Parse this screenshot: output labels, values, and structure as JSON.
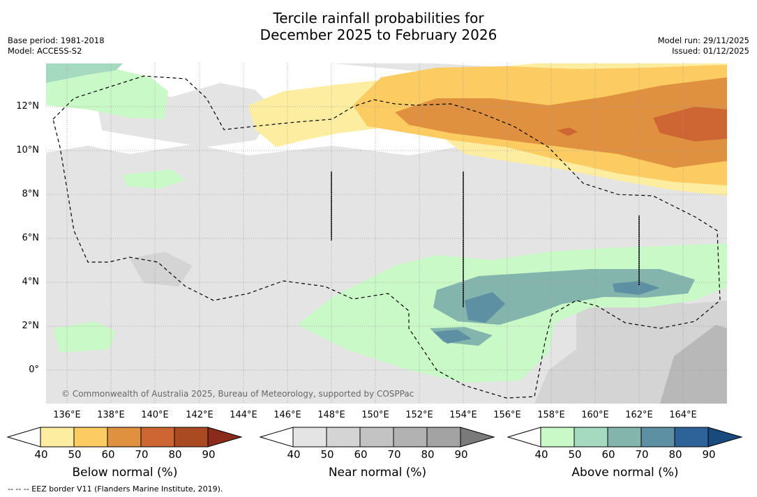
{
  "title": {
    "line1": "Tercile rainfall probabilities for",
    "line2": "December 2025 to February 2026"
  },
  "meta_left": {
    "base_period": "Base period: 1981-2018",
    "model": "Model: ACCESS-S2"
  },
  "meta_right": {
    "model_run": "Model run: 29/11/2025",
    "issued": "Issued: 01/12/2025"
  },
  "x_ticks": [
    "136°E",
    "138°E",
    "140°E",
    "142°E",
    "144°E",
    "146°E",
    "148°E",
    "150°E",
    "152°E",
    "154°E",
    "156°E",
    "158°E",
    "160°E",
    "162°E",
    "164°E"
  ],
  "y_ticks": [
    "12°N",
    "10°N",
    "8°N",
    "6°N",
    "4°N",
    "2°N",
    "0°"
  ],
  "copyright": "© Commonwealth of Australia 2025, Bureau of Meteorology, supported by COSPPac",
  "colorbars": {
    "tick_labels": [
      "40",
      "50",
      "60",
      "70",
      "80",
      "90"
    ],
    "below": {
      "title": "Below normal (%)",
      "colors": [
        "#ffffff",
        "#fdeda0",
        "#fccb62",
        "#e0913f",
        "#cd6632",
        "#a94a22",
        "#8a2b1c"
      ]
    },
    "near": {
      "title": "Near normal (%)",
      "colors": [
        "#ffffff",
        "#e4e4e4",
        "#d4d4d4",
        "#c3c3c3",
        "#b2b2b2",
        "#a3a3a3",
        "#7a7a7a"
      ]
    },
    "above": {
      "title": "Above normal (%)",
      "colors": [
        "#ffffff",
        "#c9f9c7",
        "#a5dac0",
        "#84b5ac",
        "#5d90a3",
        "#2e6399",
        "#184a7e"
      ]
    }
  },
  "footer": "-- -- -- EEZ border V11 (Flanders Marine Institute, 2019)."
}
